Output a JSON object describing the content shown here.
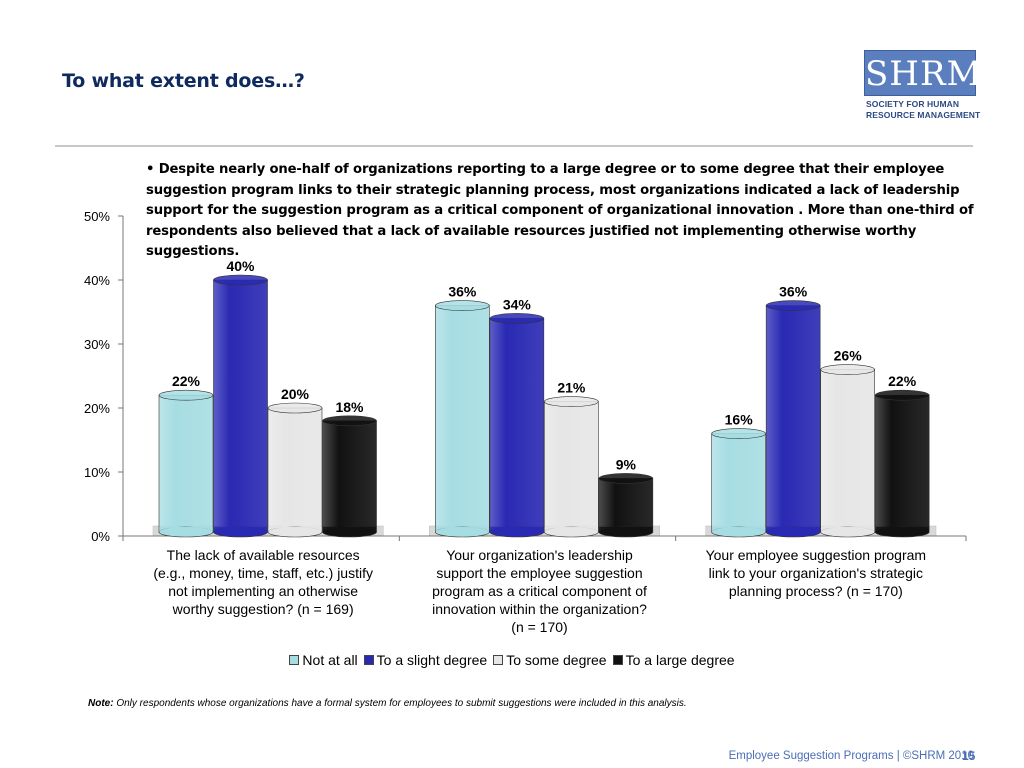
{
  "title": "To what extent does…?",
  "logo": {
    "wordmark": "SHRM",
    "line1": "SOCIETY FOR HUMAN",
    "line2": "RESOURCE MANAGEMENT",
    "color": "#5b7fbe"
  },
  "callout": "• Despite nearly one-half of organizations reporting to a large degree or to some degree that their employee suggestion program links to their strategic planning process, most organizations indicated a lack of leadership support for the suggestion program as a critical component of organizational innovation . More than one-third of respondents also believed that a lack of available resources justified not implementing otherwise worthy suggestions.",
  "chart_data": {
    "type": "bar",
    "categories": [
      "The lack of available resources (e.g., money, time, staff, etc.) justify not implementing an otherwise worthy suggestion? (n = 169)",
      "Your organization's leadership support the employee suggestion program as a critical component of innovation within the organization? (n = 170)",
      "Your employee suggestion program link to your organization's strategic planning process? (n = 170)"
    ],
    "category_lines": [
      [
        "The lack of available resources",
        "(e.g., money, time, staff, etc.) justify",
        "not implementing an otherwise",
        "worthy suggestion? (n = 169)"
      ],
      [
        "Your organization's leadership",
        "support the employee suggestion",
        "program as a critical component of",
        "innovation within the organization?",
        "(n = 170)"
      ],
      [
        "Your employee suggestion program",
        "link to your organization's strategic",
        "planning process? (n = 170)"
      ]
    ],
    "series": [
      {
        "name": "Not at all",
        "values": [
          22,
          36,
          16
        ],
        "color": "#a6dde3"
      },
      {
        "name": "To a slight degree",
        "values": [
          40,
          34,
          36
        ],
        "color": "#2929b3"
      },
      {
        "name": "To some degree",
        "values": [
          20,
          21,
          26
        ],
        "color": "#e6e6e6"
      },
      {
        "name": "To a large degree",
        "values": [
          18,
          9,
          22
        ],
        "color": "#111111"
      }
    ],
    "data_labels": [
      [
        "22%",
        "40%",
        "20%",
        "18%"
      ],
      [
        "36%",
        "34%",
        "21%",
        "9%"
      ],
      [
        "16%",
        "36%",
        "26%",
        "22%"
      ]
    ],
    "ylim": [
      0,
      50
    ],
    "yticks": [
      0,
      10,
      20,
      30,
      40,
      50
    ],
    "ytick_labels": [
      "0%",
      "10%",
      "20%",
      "30%",
      "40%",
      "50%"
    ],
    "legend_position": "bottom",
    "grid": false
  },
  "note": {
    "label": "Note:",
    "text": " Only respondents whose organizations have a formal system for employees to submit suggestions were included in this analysis."
  },
  "footer": "Employee Suggestion Programs | ©SHRM 2010",
  "page_number": "15"
}
